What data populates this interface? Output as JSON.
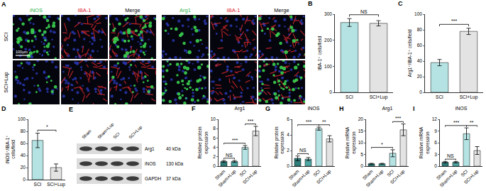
{
  "panel_A": {
    "letter": "A",
    "rows": [
      "SCI",
      "SCI+Lup"
    ],
    "columns": [
      {
        "label": "iNOS",
        "color": "#2db34a"
      },
      {
        "label": "IBA-1",
        "color": "#e0202a"
      },
      {
        "label": "Merge",
        "color": "#000000"
      },
      {
        "label": "Arg1",
        "color": "#2db34a"
      },
      {
        "label": "IBA-1",
        "color": "#e0202a"
      },
      {
        "label": "Merge",
        "color": "#000000"
      }
    ],
    "scale_bar": "100μm"
  },
  "panel_E": {
    "letter": "E",
    "lanes": [
      "Sham",
      "Sham+Lup",
      "SCI",
      "SCI+Lup"
    ],
    "bands": [
      {
        "name": "Arg1",
        "size": "40 kDa"
      },
      {
        "name": "iNOS",
        "size": "130 kDa"
      },
      {
        "name": "GAPDH",
        "size": "37 kDa"
      }
    ]
  },
  "chart_data": [
    {
      "letter": "B",
      "type": "bar",
      "categories": [
        "SCI",
        "SCI+Lup"
      ],
      "values": [
        268,
        265
      ],
      "errors": [
        15,
        10
      ],
      "colors": [
        "#b5e3e3",
        "#e3e3e3"
      ],
      "y_label": "IBA-1⁺ cells/field",
      "ylim": [
        0,
        300
      ],
      "yticks": [
        0,
        100,
        200,
        300
      ],
      "grid": false,
      "comparisons": [
        {
          "from": 0,
          "to": 1,
          "label": "NS"
        }
      ]
    },
    {
      "letter": "C",
      "type": "bar",
      "categories": [
        "SCI",
        "SCI+Lup"
      ],
      "values": [
        38,
        78
      ],
      "errors": [
        4,
        4
      ],
      "colors": [
        "#b5e3e3",
        "#e3e3e3"
      ],
      "y_label": "Arg1⁺/IBA-1⁺ cells/field",
      "ylim": [
        0,
        100
      ],
      "yticks": [
        0,
        20,
        40,
        60,
        80,
        100
      ],
      "grid": false,
      "comparisons": [
        {
          "from": 0,
          "to": 1,
          "label": "***"
        }
      ]
    },
    {
      "letter": "D",
      "type": "bar",
      "categories": [
        "SCI",
        "SCI+Lup"
      ],
      "values": [
        65,
        20
      ],
      "errors": [
        12,
        6
      ],
      "colors": [
        "#b5e3e3",
        "#e3e3e3"
      ],
      "y_label": "iNOS⁺/IBA-1⁺ cells/field",
      "ylim": [
        0,
        100
      ],
      "yticks": [
        0,
        20,
        40,
        60,
        80,
        100
      ],
      "grid": false,
      "comparisons": [
        {
          "from": 0,
          "to": 1,
          "label": "*"
        }
      ]
    },
    {
      "letter": "F",
      "type": "bar",
      "title": "Arg1",
      "categories": [
        "Sham",
        "Sham+Lup",
        "SCI",
        "SCI+Lup"
      ],
      "values": [
        1,
        1,
        4,
        7.5
      ],
      "errors": [
        0.2,
        0.2,
        0.4,
        1
      ],
      "colors": [
        "#2e7d7b",
        "#4fa7a3",
        "#b5e3e3",
        "#e3e3e3"
      ],
      "y_label": "Relative protein expression",
      "ylim": [
        0,
        10
      ],
      "yticks": [
        0,
        2,
        4,
        6,
        8,
        10
      ],
      "grid": false,
      "comparisons": [
        {
          "from": 0,
          "to": 1,
          "label": "NS"
        },
        {
          "from": 0,
          "to": 2,
          "label": "***"
        },
        {
          "from": 2,
          "to": 3,
          "label": "***"
        }
      ]
    },
    {
      "letter": "G",
      "type": "bar",
      "title": "iNOS",
      "categories": [
        "Sham",
        "Sham+Lup",
        "SCI",
        "SCI+Lup"
      ],
      "values": [
        1,
        0.9,
        4.8,
        3.5
      ],
      "errors": [
        0.3,
        0.2,
        0.2,
        0.4
      ],
      "colors": [
        "#2e7d7b",
        "#4fa7a3",
        "#b5e3e3",
        "#e3e3e3"
      ],
      "y_label": "Relative protein expression",
      "ylim": [
        0,
        6
      ],
      "yticks": [
        0,
        2,
        4,
        6
      ],
      "grid": false,
      "comparisons": [
        {
          "from": 0,
          "to": 1,
          "label": "NS"
        },
        {
          "from": 0,
          "to": 2,
          "label": "***"
        },
        {
          "from": 2,
          "to": 3,
          "label": "**"
        }
      ]
    },
    {
      "letter": "H",
      "type": "bar",
      "title": "Arg1",
      "categories": [
        "Sham",
        "Sham+Lup",
        "SCI",
        "SCI+Lup"
      ],
      "values": [
        1,
        1,
        5.5,
        15.5
      ],
      "errors": [
        0.2,
        0.2,
        1.5,
        2.5
      ],
      "colors": [
        "#2e7d7b",
        "#4fa7a3",
        "#b5e3e3",
        "#e3e3e3"
      ],
      "y_label": "Relative mRNA expression",
      "ylim": [
        0,
        20
      ],
      "yticks": [
        0,
        5,
        10,
        15,
        20
      ],
      "grid": false,
      "comparisons": [
        {
          "from": 0,
          "to": 2,
          "label": "*"
        },
        {
          "from": 2,
          "to": 3,
          "label": "***"
        }
      ]
    },
    {
      "letter": "I",
      "type": "bar",
      "title": "iNOS",
      "categories": [
        "Sham",
        "Sham+Lup",
        "SCI",
        "SCI+Lup"
      ],
      "values": [
        1,
        1,
        8.3,
        4
      ],
      "errors": [
        0.2,
        0.2,
        1.5,
        1
      ],
      "colors": [
        "#2e7d7b",
        "#4fa7a3",
        "#b5e3e3",
        "#e3e3e3"
      ],
      "y_label": "Relative mRNA expression",
      "ylim": [
        0,
        12
      ],
      "yticks": [
        0,
        3,
        6,
        9,
        12
      ],
      "grid": false,
      "comparisons": [
        {
          "from": 0,
          "to": 1,
          "label": "NS"
        },
        {
          "from": 0,
          "to": 2,
          "label": "***"
        },
        {
          "from": 2,
          "to": 3,
          "label": "**"
        }
      ]
    }
  ]
}
